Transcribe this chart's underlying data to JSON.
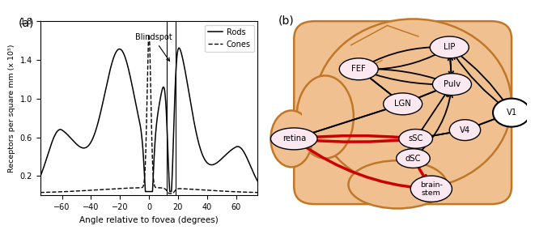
{
  "title_a": "(a)",
  "title_b": "(b)",
  "ylabel": "Receptors per square mm (x 10⁵)",
  "xlabel": "Angle relative to fovea (degrees)",
  "xlim": [
    -75,
    75
  ],
  "ylim": [
    0,
    1.8
  ],
  "yticks": [
    0.2,
    0.6,
    1.0,
    1.4,
    1.8
  ],
  "xticks": [
    -60,
    -40,
    -20,
    0,
    20,
    40,
    60
  ],
  "legend_rods": "Rods",
  "legend_cones": "Cones",
  "bg_color": "#ffffff",
  "brain_fill": "#f0c090",
  "brain_edge": "#c07828",
  "node_fill": "#fce8f0",
  "node_edge": "#000000",
  "red_arrow": "#cc0000",
  "black_arrow": "#000000",
  "v1_fill": "#ffffff"
}
